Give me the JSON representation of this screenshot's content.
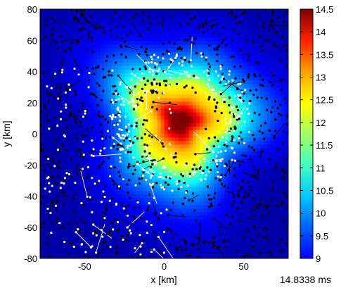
{
  "chart_data": {
    "type": "heatmap",
    "title": "",
    "xlabel": "x [km]",
    "ylabel": "y [km]",
    "xlim": [
      -78,
      78
    ],
    "ylim": [
      -80,
      80
    ],
    "x_ticks": [
      -50,
      0,
      50
    ],
    "y_ticks": [
      80,
      60,
      40,
      20,
      0,
      -20,
      -40,
      -60,
      -80
    ],
    "colorbar": {
      "range": [
        9,
        14.5
      ],
      "ticks": [
        14.5,
        14,
        13.5,
        13,
        12.5,
        12,
        11.5,
        11,
        10.5,
        10,
        9.5,
        9
      ],
      "colormap": "jet"
    },
    "field_description": "radially decreasing scalar field: ~14.5 at core near (10, 8) km, ring of ~12.5–13 around r≈25 km, ~11 at r≈45 km, ~9 at corners",
    "core_center": [
      10,
      8
    ],
    "overlay": {
      "black_particles": "dense black markers throughout domain",
      "white_particles": "white markers concentrated on ring r≈30–45 km and lower-left",
      "trajectory_lines": true
    },
    "grid": false,
    "legend": "none"
  },
  "timestamp_label": "14.8338 ms"
}
